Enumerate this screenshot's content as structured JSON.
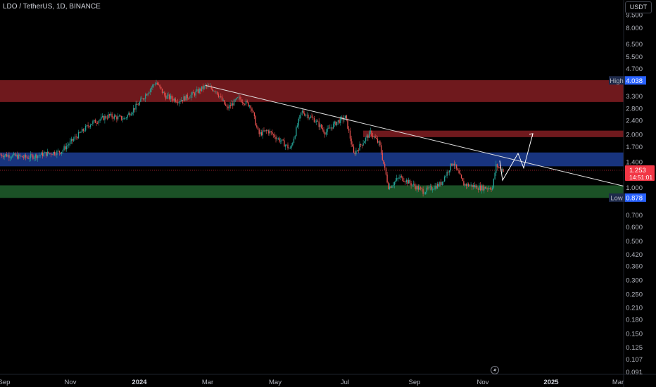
{
  "header": {
    "title": "LDO / TetherUS, 1D, BINANCE",
    "currency_button": "USDT"
  },
  "chart_data": {
    "type": "candlestick",
    "y_scale": "log",
    "ylim": [
      0.088,
      11.5
    ],
    "y_ticks": [
      "9.500",
      "8.000",
      "6.500",
      "5.500",
      "4.700",
      "3.300",
      "2.800",
      "2.400",
      "2.000",
      "1.700",
      "1.400",
      "1.000",
      "0.700",
      "0.600",
      "0.500",
      "0.420",
      "0.360",
      "0.300",
      "0.250",
      "0.210",
      "0.180",
      "0.150",
      "0.125",
      "0.107",
      "0.091"
    ],
    "x_ticks": [
      "Sep",
      "Nov",
      "2024",
      "Mar",
      "May",
      "Jul",
      "Sep",
      "Nov",
      "2025",
      "Mar"
    ],
    "bold_x_ticks": [
      "2024",
      "2025"
    ],
    "high_label": {
      "label": "High",
      "value": "4.038"
    },
    "low_label": {
      "label": "Low",
      "value": "0.878"
    },
    "last_price": {
      "value": "1.253",
      "countdown": "14:51:01"
    },
    "zones": [
      {
        "name": "resistance-upper",
        "from": 3.05,
        "to": 4.05,
        "color": "#7b1c20"
      },
      {
        "name": "resistance-mid",
        "from": 1.93,
        "to": 2.1,
        "color": "#7b1c20"
      },
      {
        "name": "supply-blue",
        "from": 1.32,
        "to": 1.58,
        "color": "#1b3a8c"
      },
      {
        "name": "support-green",
        "from": 0.875,
        "to": 1.03,
        "color": "#1e5a2a"
      }
    ],
    "trendline": {
      "start": [
        "2024-02-25",
        3.78
      ],
      "end": [
        "2025-03-01",
        1.02
      ]
    },
    "projection_path": [
      1.45,
      1.1,
      1.32,
      1.18,
      1.65,
      1.32,
      2.02
    ],
    "price_path": [
      [
        "2023-08-20",
        1.55
      ],
      [
        "2023-09-05",
        1.52
      ],
      [
        "2023-09-20",
        1.48
      ],
      [
        "2023-10-05",
        1.55
      ],
      [
        "2023-10-20",
        1.6
      ],
      [
        "2023-11-01",
        1.9
      ],
      [
        "2023-11-15",
        2.3
      ],
      [
        "2023-12-01",
        2.55
      ],
      [
        "2023-12-15",
        2.45
      ],
      [
        "2023-12-28",
        3.0
      ],
      [
        "2024-01-05",
        3.5
      ],
      [
        "2024-01-12",
        3.95
      ],
      [
        "2024-01-20",
        3.3
      ],
      [
        "2024-02-01",
        3.1
      ],
      [
        "2024-02-15",
        3.4
      ],
      [
        "2024-02-25",
        3.75
      ],
      [
        "2024-03-05",
        3.55
      ],
      [
        "2024-03-15",
        2.8
      ],
      [
        "2024-03-25",
        3.2
      ],
      [
        "2024-04-05",
        2.9
      ],
      [
        "2024-04-12",
        2.0
      ],
      [
        "2024-04-20",
        2.1
      ],
      [
        "2024-05-01",
        1.85
      ],
      [
        "2024-05-10",
        1.65
      ],
      [
        "2024-05-20",
        2.7
      ],
      [
        "2024-06-01",
        2.4
      ],
      [
        "2024-06-10",
        2.05
      ],
      [
        "2024-06-20",
        2.35
      ],
      [
        "2024-06-28",
        2.5
      ],
      [
        "2024-07-05",
        1.55
      ],
      [
        "2024-07-20",
        2.05
      ],
      [
        "2024-07-28",
        1.75
      ],
      [
        "2024-08-05",
        1.0
      ],
      [
        "2024-08-15",
        1.15
      ],
      [
        "2024-08-25",
        1.05
      ],
      [
        "2024-09-05",
        0.95
      ],
      [
        "2024-09-20",
        1.05
      ],
      [
        "2024-10-01",
        1.4
      ],
      [
        "2024-10-10",
        1.05
      ],
      [
        "2024-10-25",
        1.0
      ],
      [
        "2024-11-05",
        1.0
      ],
      [
        "2024-11-08",
        1.33
      ],
      [
        "2024-11-15",
        1.253
      ]
    ],
    "colors": {
      "up": "#26a69a",
      "down": "#ef5350",
      "trendline": "#e0e0e0",
      "last_price": "#f23645"
    }
  }
}
